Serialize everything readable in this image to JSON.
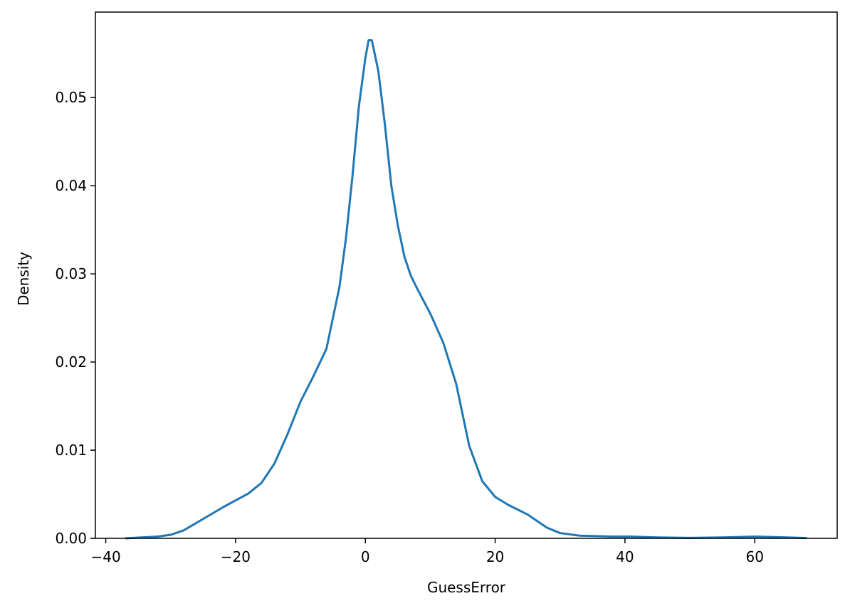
{
  "chart_data": {
    "type": "line",
    "xlabel": "GuessError",
    "ylabel": "Density",
    "x": [
      -37,
      -32,
      -30,
      -28,
      -25,
      -22,
      -20,
      -18,
      -16,
      -14,
      -12,
      -10,
      -8,
      -6,
      -4,
      -3,
      -2,
      -1,
      0,
      0.5,
      1,
      2,
      3,
      4,
      5,
      6,
      7,
      8,
      10,
      12,
      14,
      16,
      18,
      20,
      22,
      25,
      28,
      30,
      33,
      38,
      41,
      45,
      50,
      55,
      60,
      65,
      68
    ],
    "series": [
      {
        "color": "#1f77b4",
        "values": [
          0,
          0.0002,
          0.0004,
          0.0009,
          0.0022,
          0.0035,
          0.0043,
          0.0051,
          0.0063,
          0.0085,
          0.0118,
          0.0155,
          0.0184,
          0.0215,
          0.0285,
          0.034,
          0.041,
          0.049,
          0.0545,
          0.0565,
          0.0565,
          0.053,
          0.047,
          0.04,
          0.0355,
          0.032,
          0.0298,
          0.0283,
          0.0255,
          0.0222,
          0.0175,
          0.0105,
          0.0065,
          0.0047,
          0.0038,
          0.0027,
          0.0012,
          0.0006,
          0.0003,
          0.0002,
          0.0002,
          0.0001,
          5e-05,
          0.0001,
          0.0002,
          0.0001,
          3e-05
        ]
      }
    ],
    "xlim": [
      -41.6,
      72.7
    ],
    "ylim": [
      0,
      0.0597
    ],
    "xticks": [
      {
        "value": -40,
        "label": "−40"
      },
      {
        "value": -20,
        "label": "−20"
      },
      0,
      20,
      40,
      60
    ],
    "yticks": [
      {
        "value": 0,
        "label": "0.00"
      },
      0.01,
      0.02,
      0.03,
      0.04,
      0.05
    ]
  }
}
